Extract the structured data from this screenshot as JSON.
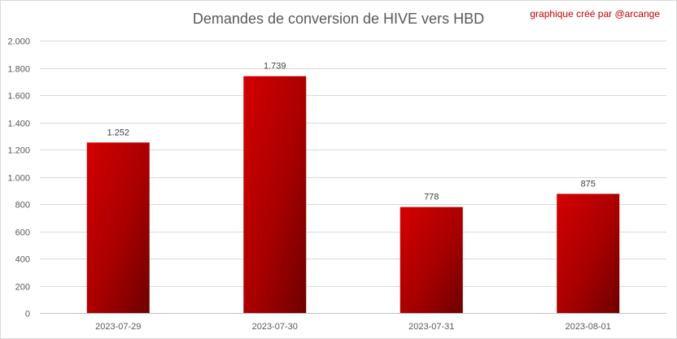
{
  "chart_data": {
    "type": "bar",
    "title": "Demandes de conversion de HIVE vers HBD",
    "credit": "graphique créé par @arcange",
    "categories": [
      "2023-07-29",
      "2023-07-30",
      "2023-07-31",
      "2023-08-01"
    ],
    "values": [
      1252,
      1739,
      778,
      875
    ],
    "value_labels": [
      "1.252",
      "1.739",
      "778",
      "875"
    ],
    "ylim": [
      0,
      2000
    ],
    "yticks": [
      0,
      200,
      400,
      600,
      800,
      1000,
      1200,
      1400,
      1600,
      1800,
      2000
    ],
    "ytick_labels": [
      "0",
      "200",
      "400",
      "600",
      "800",
      "1.000",
      "1.200",
      "1.400",
      "1.600",
      "1.800",
      "2.000"
    ],
    "grid": true,
    "xlabel": "",
    "ylabel": "",
    "colors": {
      "bar_light": "#d40000",
      "bar_dark": "#6e0000",
      "grid": "#d9d9d9",
      "credit": "#c00000"
    }
  }
}
